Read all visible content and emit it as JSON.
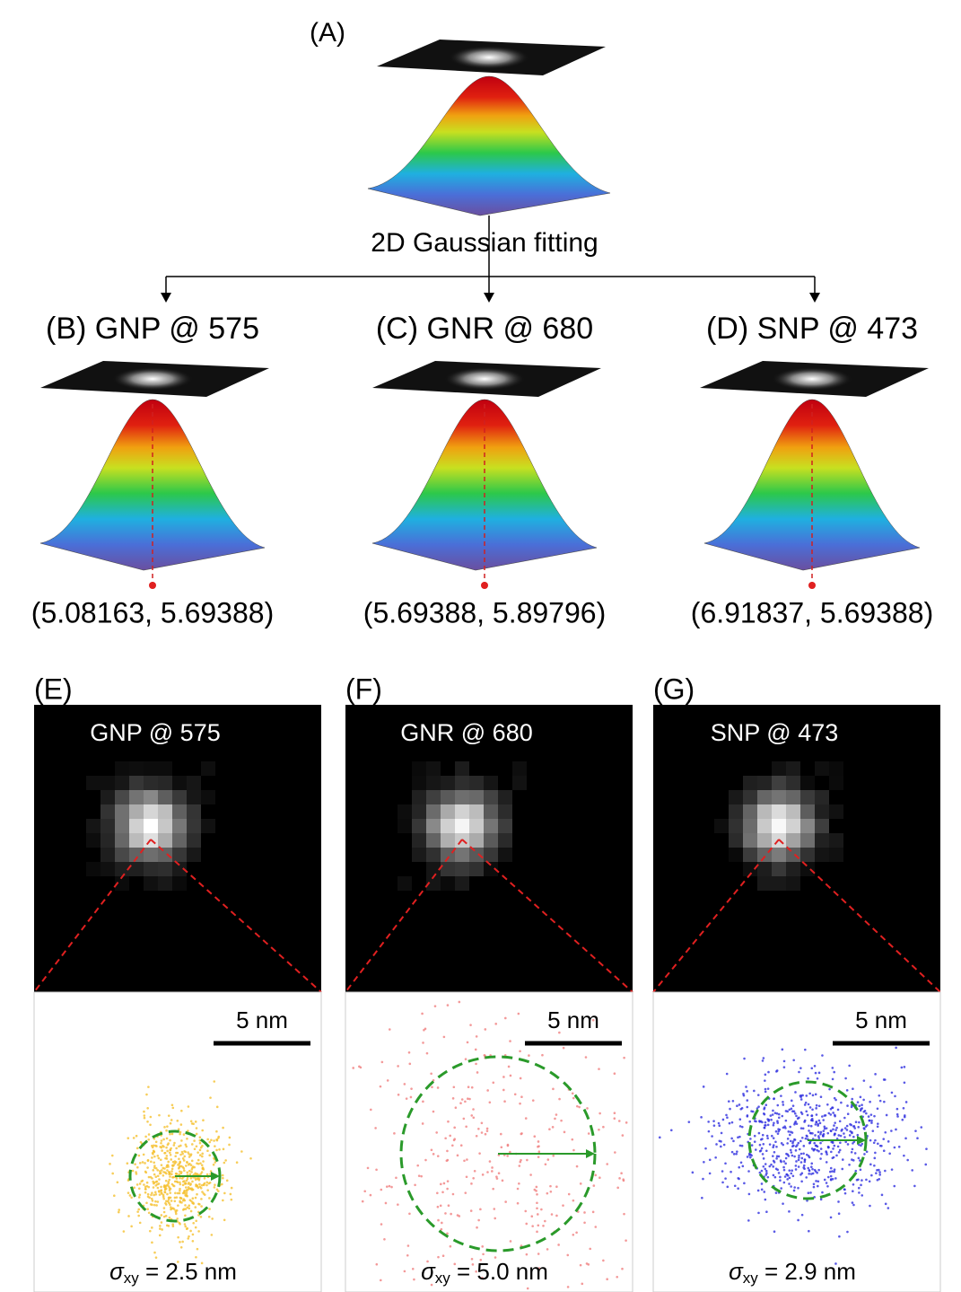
{
  "panel_a": {
    "label": "(A)",
    "caption": "2D Gaussian fitting"
  },
  "fits": [
    {
      "label": "(B) GNP @ 575",
      "coords": "(5.08163, 5.69388)"
    },
    {
      "label": "(C) GNR @ 680",
      "coords": "(5.69388, 5.89796)"
    },
    {
      "label": "(D) SNP @ 473",
      "coords": "(6.91837, 5.69388)"
    }
  ],
  "images": [
    {
      "label": "(E)",
      "title": "GNP @ 575",
      "scale_bar": "5 nm",
      "sigma_symbol": "σ",
      "sigma_sub": "xy",
      "sigma_value": " = 2.5 nm"
    },
    {
      "label": "(F)",
      "title": "GNR @ 680",
      "scale_bar": "5 nm",
      "sigma_symbol": "σ",
      "sigma_sub": "xy",
      "sigma_value": " = 5.0 nm"
    },
    {
      "label": "(G)",
      "title": "SNP @ 473",
      "scale_bar": "5 nm",
      "sigma_symbol": "σ",
      "sigma_sub": "xy",
      "sigma_value": " = 2.9 nm"
    }
  ]
}
